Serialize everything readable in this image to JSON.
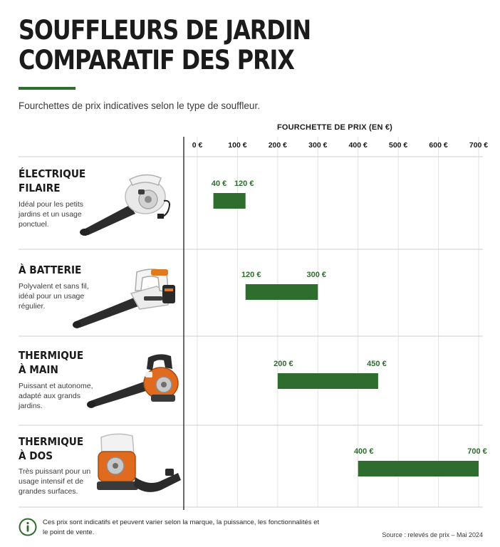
{
  "title_lines": [
    "SOUFFLEURS DE JARDIN",
    "COMPARATIF DES PRIX"
  ],
  "subtitle": "Fourchettes de prix indicatives selon le type de souffleur.",
  "footer": {
    "note": "Ces prix sont indicatifs et peuvent varier selon la marque, la puissance, les fonctionnalités et le point de vente.",
    "source": "Source : relevés de prix – Mai 2024"
  },
  "colors": {
    "bar": "#2f6d2f",
    "label": "#2f6d2f",
    "accent": "#2f6d2f",
    "grid": "#e3e3e3"
  },
  "icons": [
    "electric-blower-icon",
    "battery-blower-icon",
    "gas-blower-icon",
    "backpack-blower-icon",
    "info-icon"
  ],
  "chart_data": {
    "type": "range-bar",
    "title": "FOURCHETTE DE PRIX (EN €)",
    "xlim": [
      0,
      700
    ],
    "grid": true,
    "ticks": [
      {
        "value": 0,
        "label": "0 €"
      },
      {
        "value": 100,
        "label": "100 €"
      },
      {
        "value": 200,
        "label": "200 €"
      },
      {
        "value": 300,
        "label": "300 €"
      },
      {
        "value": 400,
        "label": "400 €"
      },
      {
        "value": 500,
        "label": "500 €"
      },
      {
        "value": 600,
        "label": "600 €"
      },
      {
        "value": 700,
        "label": "700 €"
      }
    ],
    "categories": [
      {
        "name_lines": [
          "ÉLECTRIQUE",
          "FILAIRE"
        ],
        "description": "Idéal pour les petits jardins et un usage ponctuel.",
        "min": 40,
        "max": 120,
        "min_label": "40 €",
        "max_label": "120 €"
      },
      {
        "name_lines": [
          "À BATTERIE"
        ],
        "description": "Polyvalent et sans fil, idéal pour un usage régulier.",
        "min": 120,
        "max": 300,
        "min_label": "120 €",
        "max_label": "300 €"
      },
      {
        "name_lines": [
          "THERMIQUE",
          "À MAIN"
        ],
        "description": "Puissant et autonome, adapté aux grands jardins.",
        "min": 200,
        "max": 450,
        "min_label": "200 €",
        "max_label": "450 €"
      },
      {
        "name_lines": [
          "THERMIQUE",
          "À DOS"
        ],
        "description": "Très puissant pour un usage intensif et de grandes surfaces.",
        "min": 400,
        "max": 700,
        "min_label": "400 €",
        "max_label": "700 €"
      }
    ]
  }
}
